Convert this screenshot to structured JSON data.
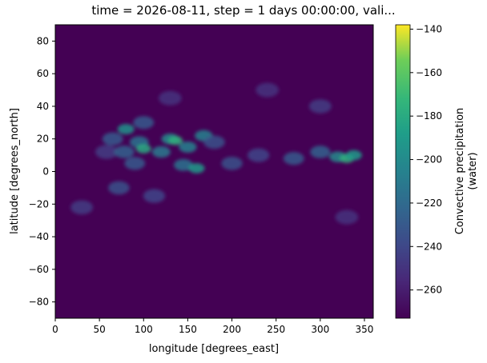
{
  "chart_data": {
    "type": "heatmap",
    "title": "time = 2026-08-11, step = 1 days 00:00:00, vali...",
    "xlabel": "longitude [degrees_east]",
    "ylabel": "latitude [degrees_north]",
    "xlim": [
      0,
      360
    ],
    "ylim": [
      -90,
      90
    ],
    "x_ticks": [
      0,
      50,
      100,
      150,
      200,
      250,
      300,
      350
    ],
    "y_ticks": [
      80,
      60,
      40,
      20,
      0,
      -20,
      -40,
      -60,
      -80
    ],
    "colorbar": {
      "label_line1": "Convective precipitation",
      "label_line2": "(water)",
      "range": [
        -273,
        -138
      ],
      "ticks": [
        -140,
        -160,
        -180,
        -200,
        -220,
        -240,
        -260
      ],
      "colormap": "viridis"
    },
    "background_value": -273,
    "features": [
      {
        "lon": 58,
        "lat": 12,
        "value": -245
      },
      {
        "lon": 65,
        "lat": 20,
        "value": -230
      },
      {
        "lon": 72,
        "lat": -10,
        "value": -235
      },
      {
        "lon": 78,
        "lat": 12,
        "value": -225
      },
      {
        "lon": 80,
        "lat": 26,
        "value": -195
      },
      {
        "lon": 90,
        "lat": 5,
        "value": -230
      },
      {
        "lon": 95,
        "lat": 18,
        "value": -215
      },
      {
        "lon": 100,
        "lat": 14,
        "value": -180
      },
      {
        "lon": 100,
        "lat": 30,
        "value": -230
      },
      {
        "lon": 112,
        "lat": -15,
        "value": -240
      },
      {
        "lon": 120,
        "lat": 12,
        "value": -210
      },
      {
        "lon": 130,
        "lat": 20,
        "value": -200
      },
      {
        "lon": 136,
        "lat": 19,
        "value": -175
      },
      {
        "lon": 145,
        "lat": 4,
        "value": -215
      },
      {
        "lon": 150,
        "lat": 15,
        "value": -205
      },
      {
        "lon": 160,
        "lat": 2,
        "value": -190
      },
      {
        "lon": 168,
        "lat": 22,
        "value": -205
      },
      {
        "lon": 180,
        "lat": 18,
        "value": -235
      },
      {
        "lon": 200,
        "lat": 5,
        "value": -235
      },
      {
        "lon": 230,
        "lat": 10,
        "value": -240
      },
      {
        "lon": 270,
        "lat": 8,
        "value": -230
      },
      {
        "lon": 300,
        "lat": 12,
        "value": -225
      },
      {
        "lon": 320,
        "lat": 9,
        "value": -200
      },
      {
        "lon": 330,
        "lat": 8,
        "value": -175
      },
      {
        "lon": 338,
        "lat": 10,
        "value": -190
      },
      {
        "lon": 300,
        "lat": 40,
        "value": -245
      },
      {
        "lon": 240,
        "lat": 50,
        "value": -250
      },
      {
        "lon": 130,
        "lat": 45,
        "value": -250
      },
      {
        "lon": 30,
        "lat": -22,
        "value": -245
      },
      {
        "lon": 330,
        "lat": -28,
        "value": -250
      }
    ]
  }
}
